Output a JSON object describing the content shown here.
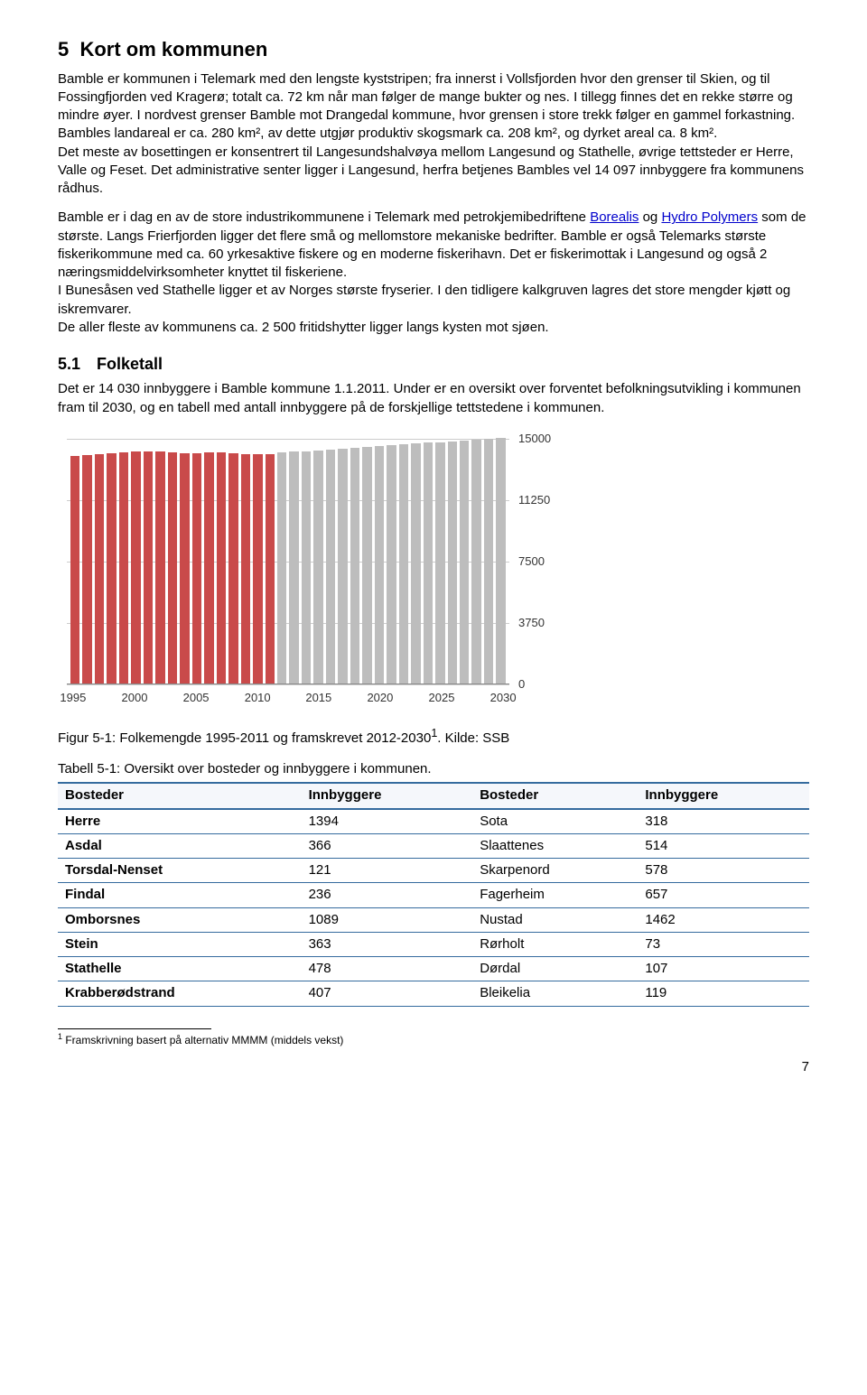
{
  "heading": {
    "num": "5",
    "title": "Kort om kommunen"
  },
  "p1": "Bamble er kommunen i Telemark med den lengste kyststripen; fra innerst i Vollsfjorden hvor den grenser til Skien, og til Fossingfjorden ved Kragerø; totalt ca. 72 km når man følger de mange bukter og nes. I tillegg finnes det en rekke større og mindre øyer. I nordvest grenser Bamble mot Drangedal kommune, hvor grensen i store trekk følger en gammel forkastning. Bambles landareal er ca. 280 km², av dette utgjør produktiv skogsmark ca. 208 km², og dyrket areal ca. 8 km².",
  "p2": "Det meste av bosettingen er konsentrert til Langesundshalvøya mellom Langesund og Stathelle, øvrige tettsteder er Herre, Valle og Feset. Det administrative senter ligger i Langesund, herfra betjenes Bambles vel 14 097 innbyggere fra kommunens rådhus.",
  "p3a": "Bamble er i dag en av de store industrikommunene i Telemark med petrokjemibedriftene ",
  "p3_link1": "Borealis",
  "p3b": " og ",
  "p3_link2": "Hydro Polymers",
  "p3c": " som de største. Langs Frierfjorden ligger det flere små og mellomstore mekaniske bedrifter. Bamble er også Telemarks største fiskerikommune med ca. 60 yrkesaktive fiskere og en moderne fiskerihavn. Det er fiskerimottak i Langesund og også 2 næringsmiddelvirksomheter knyttet til fiskeriene.",
  "p4": "I Bunesåsen ved Stathelle ligger et av Norges største fryserier. I den tidligere kalkgruven lagres det store mengder kjøtt og iskremvarer.",
  "p5": "De aller fleste av kommunens ca. 2 500 fritidshytter ligger langs kysten mot sjøen.",
  "sub": {
    "num": "5.1",
    "title": "Folketall"
  },
  "p6": "Det er 14 030 innbyggere i Bamble kommune 1.1.2011. Under er en oversikt over forventet befolkningsutvikling i kommunen fram til 2030, og en tabell med antall innbyggere på de forskjellige tettstedene i kommunen.",
  "chart": {
    "ymax": 15000,
    "yticks": [
      0,
      3750,
      7500,
      11250,
      15000
    ],
    "xlabels": [
      "1995",
      "2000",
      "2005",
      "2010",
      "2015",
      "2020",
      "2025",
      "2030"
    ],
    "xpositions_pct": [
      1.4,
      15.3,
      29.2,
      43.1,
      56.9,
      70.8,
      84.7,
      98.6
    ],
    "bars": [
      {
        "v": 13900,
        "c": "#c94a4a"
      },
      {
        "v": 13950,
        "c": "#c94a4a"
      },
      {
        "v": 14000,
        "c": "#c94a4a"
      },
      {
        "v": 14050,
        "c": "#c94a4a"
      },
      {
        "v": 14100,
        "c": "#c94a4a"
      },
      {
        "v": 14150,
        "c": "#c94a4a"
      },
      {
        "v": 14200,
        "c": "#c94a4a"
      },
      {
        "v": 14200,
        "c": "#c94a4a"
      },
      {
        "v": 14100,
        "c": "#c94a4a"
      },
      {
        "v": 14050,
        "c": "#c94a4a"
      },
      {
        "v": 14050,
        "c": "#c94a4a"
      },
      {
        "v": 14100,
        "c": "#c94a4a"
      },
      {
        "v": 14100,
        "c": "#c94a4a"
      },
      {
        "v": 14050,
        "c": "#c94a4a"
      },
      {
        "v": 14000,
        "c": "#c94a4a"
      },
      {
        "v": 14000,
        "c": "#c94a4a"
      },
      {
        "v": 14030,
        "c": "#c94a4a"
      },
      {
        "v": 14100,
        "c": "#bdbdbd"
      },
      {
        "v": 14150,
        "c": "#bdbdbd"
      },
      {
        "v": 14200,
        "c": "#bdbdbd"
      },
      {
        "v": 14250,
        "c": "#bdbdbd"
      },
      {
        "v": 14300,
        "c": "#bdbdbd"
      },
      {
        "v": 14350,
        "c": "#bdbdbd"
      },
      {
        "v": 14400,
        "c": "#bdbdbd"
      },
      {
        "v": 14450,
        "c": "#bdbdbd"
      },
      {
        "v": 14500,
        "c": "#bdbdbd"
      },
      {
        "v": 14550,
        "c": "#bdbdbd"
      },
      {
        "v": 14600,
        "c": "#bdbdbd"
      },
      {
        "v": 14650,
        "c": "#bdbdbd"
      },
      {
        "v": 14700,
        "c": "#bdbdbd"
      },
      {
        "v": 14750,
        "c": "#bdbdbd"
      },
      {
        "v": 14800,
        "c": "#bdbdbd"
      },
      {
        "v": 14850,
        "c": "#bdbdbd"
      },
      {
        "v": 14900,
        "c": "#bdbdbd"
      },
      {
        "v": 14950,
        "c": "#bdbdbd"
      },
      {
        "v": 15000,
        "c": "#bdbdbd"
      }
    ]
  },
  "fig_caption_a": "Figur 5-1: Folkemengde 1995-2011 og framskrevet 2012-2030",
  "fig_sup": "1",
  "fig_caption_b": ". Kilde: SSB",
  "table_caption": "Tabell 5-1: Oversikt over bosteder og innbyggere i kommunen.",
  "table": {
    "headers": [
      "Bosteder",
      "Innbyggere",
      "Bosteder",
      "Innbyggere"
    ],
    "rows": [
      [
        "Herre",
        "1394",
        "Sota",
        "318"
      ],
      [
        "Asdal",
        "366",
        "Slaattenes",
        "514"
      ],
      [
        "Torsdal-Nenset",
        "121",
        "Skarpenord",
        "578"
      ],
      [
        "Findal",
        "236",
        "Fagerheim",
        "657"
      ],
      [
        "Omborsnes",
        "1089",
        "Nustad",
        "1462"
      ],
      [
        "Stein",
        "363",
        "Rørholt",
        "73"
      ],
      [
        "Stathelle",
        "478",
        "Dørdal",
        "107"
      ],
      [
        "Krabberødstrand",
        "407",
        "Bleikelia",
        "119"
      ]
    ]
  },
  "footnote_sup": "1",
  "footnote": " Framskrivning basert på alternativ MMMM (middels vekst)",
  "page_num": "7"
}
